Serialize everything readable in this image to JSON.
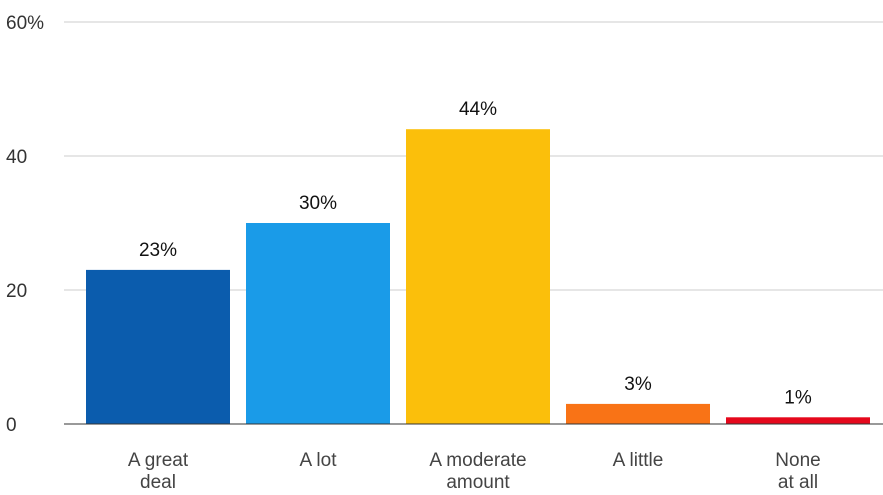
{
  "chart_data": {
    "type": "bar",
    "categories": [
      [
        "A great",
        "deal"
      ],
      [
        "A lot"
      ],
      [
        "A moderate",
        "amount"
      ],
      [
        "A little"
      ],
      [
        "None",
        "at all"
      ]
    ],
    "values": [
      23,
      30,
      44,
      3,
      1
    ],
    "data_labels": [
      "23%",
      "30%",
      "44%",
      "3%",
      "1%"
    ],
    "bar_colors": [
      "#0b5cad",
      "#1a9be8",
      "#fbbf0b",
      "#f97316",
      "#e5081c"
    ],
    "ylim": [
      0,
      60
    ],
    "y_ticks": [
      {
        "value": 0,
        "label": "0"
      },
      {
        "value": 20,
        "label": "20"
      },
      {
        "value": 40,
        "label": "40"
      },
      {
        "value": 60,
        "label": "60%"
      }
    ],
    "grid": true,
    "legend": "none"
  }
}
